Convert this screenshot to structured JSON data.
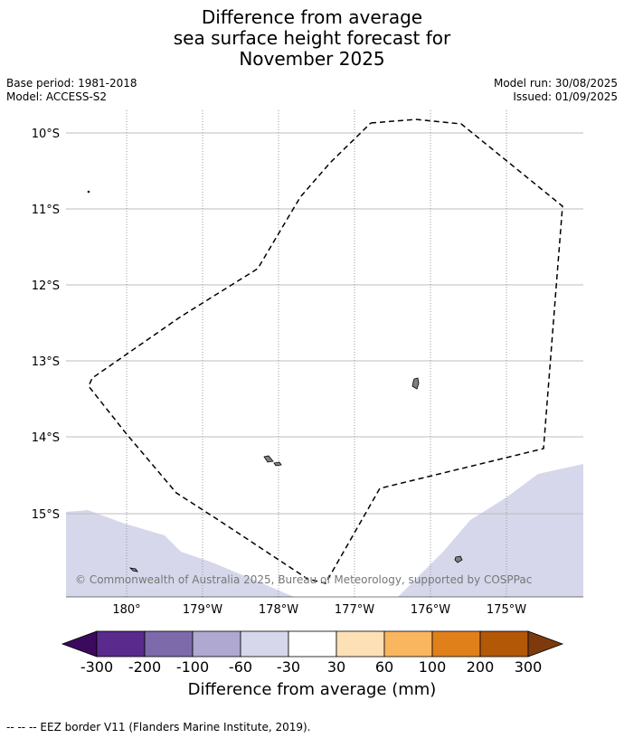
{
  "title": {
    "line1": "Difference from average",
    "line2": "sea surface height forecast for",
    "line3": "November 2025"
  },
  "meta": {
    "base_period": "Base period: 1981-2018",
    "model": "Model: ACCESS-S2",
    "model_run": "Model run: 30/08/2025",
    "issued": "Issued: 01/09/2025"
  },
  "map": {
    "lon_labels": [
      "180°",
      "179°W",
      "178°W",
      "177°W",
      "176°W",
      "175°W"
    ],
    "lat_labels": [
      "10°S",
      "11°S",
      "12°S",
      "13°S",
      "14°S",
      "15°S"
    ],
    "copyright": "© Commonwealth of Australia 2025, Bureau of Meteorology, supported by COSPPac",
    "colors": {
      "light_lavender": "#d6d7ea",
      "land": "#808080",
      "eez_border": "#000000"
    }
  },
  "colorbar": {
    "ticks": [
      "-300",
      "-200",
      "-100",
      "-60",
      "-30",
      "30",
      "60",
      "100",
      "200",
      "300"
    ],
    "colors": [
      "#3b0a5e",
      "#5a2a8c",
      "#7c6aaa",
      "#afa8d0",
      "#d6d7ea",
      "#ffffff",
      "#fde0b5",
      "#f9b65f",
      "#e0801a",
      "#b25807",
      "#7e3a0d"
    ],
    "label": "Difference from average (mm)"
  },
  "footnote": "--  --  -- EEZ border V11 (Flanders Marine Institute, 2019)."
}
